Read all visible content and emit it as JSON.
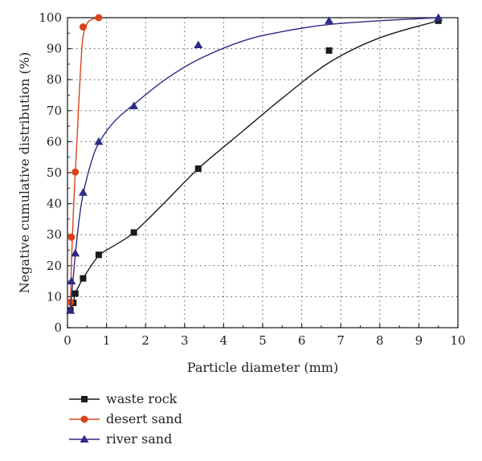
{
  "chart_data": {
    "type": "scatter",
    "xlabel": "Particle diameter (mm)",
    "ylabel": "Negative cumulative distribution (%)",
    "xlim": [
      0,
      10
    ],
    "ylim": [
      0,
      100
    ],
    "x_ticks": [
      0,
      1,
      2,
      3,
      4,
      5,
      6,
      7,
      8,
      9,
      10
    ],
    "y_ticks": [
      0,
      10,
      20,
      30,
      40,
      50,
      60,
      70,
      80,
      90,
      100
    ],
    "grid": "dotted",
    "legend_position": "bottom-left, below plot",
    "series": [
      {
        "name": "waste rock",
        "color": "#1a1a1a",
        "marker": "square",
        "points": [
          [
            0.075,
            5.6
          ],
          [
            0.15,
            8.0
          ],
          [
            0.2,
            11.0
          ],
          [
            0.4,
            15.9
          ],
          [
            0.8,
            23.5
          ],
          [
            1.7,
            30.7
          ],
          [
            3.35,
            51.3
          ],
          [
            6.7,
            89.4
          ],
          [
            9.5,
            99.0
          ]
        ],
        "fit": [
          [
            0.075,
            5.6
          ],
          [
            0.15,
            8.0
          ],
          [
            0.2,
            11.0
          ],
          [
            0.4,
            15.9
          ],
          [
            0.8,
            23.2
          ],
          [
            1.2,
            26.5
          ],
          [
            1.7,
            30.7
          ],
          [
            2.5,
            40.5
          ],
          [
            3.35,
            51.3
          ],
          [
            4.5,
            63.5
          ],
          [
            5.5,
            74.0
          ],
          [
            6.7,
            85.5
          ],
          [
            8.0,
            93.5
          ],
          [
            9.5,
            99.0
          ]
        ]
      },
      {
        "name": "desert sand",
        "color": "#d9441c",
        "marker": "circle",
        "points": [
          [
            0.075,
            8.2
          ],
          [
            0.1,
            29.2
          ],
          [
            0.2,
            50.2
          ],
          [
            0.4,
            97.0
          ],
          [
            0.8,
            100.0
          ]
        ],
        "fit": [
          [
            0.075,
            5.5
          ],
          [
            0.1,
            20.0
          ],
          [
            0.15,
            37.0
          ],
          [
            0.2,
            50.0
          ],
          [
            0.25,
            62.0
          ],
          [
            0.3,
            75.0
          ],
          [
            0.35,
            86.5
          ],
          [
            0.4,
            94.0
          ],
          [
            0.5,
            98.0
          ],
          [
            0.6,
            99.3
          ],
          [
            0.8,
            100.0
          ]
        ]
      },
      {
        "name": "river sand",
        "color": "#2e2a86",
        "marker": "triangle",
        "points": [
          [
            0.075,
            5.5
          ],
          [
            0.1,
            15.0
          ],
          [
            0.2,
            24.0
          ],
          [
            0.4,
            43.6
          ],
          [
            0.8,
            60.0
          ],
          [
            1.7,
            71.5
          ],
          [
            3.35,
            91.2
          ],
          [
            6.7,
            99.0
          ],
          [
            9.5,
            100.0
          ]
        ],
        "fit": [
          [
            0.075,
            5.5
          ],
          [
            0.1,
            10.0
          ],
          [
            0.15,
            16.5
          ],
          [
            0.2,
            23.5
          ],
          [
            0.3,
            35.0
          ],
          [
            0.4,
            43.0
          ],
          [
            0.6,
            53.0
          ],
          [
            0.8,
            59.5
          ],
          [
            1.2,
            66.5
          ],
          [
            1.7,
            72.0
          ],
          [
            2.5,
            80.0
          ],
          [
            3.35,
            86.5
          ],
          [
            4.5,
            92.5
          ],
          [
            5.5,
            95.5
          ],
          [
            6.7,
            97.8
          ],
          [
            8.0,
            99.0
          ],
          [
            9.5,
            100.0
          ]
        ]
      }
    ]
  }
}
